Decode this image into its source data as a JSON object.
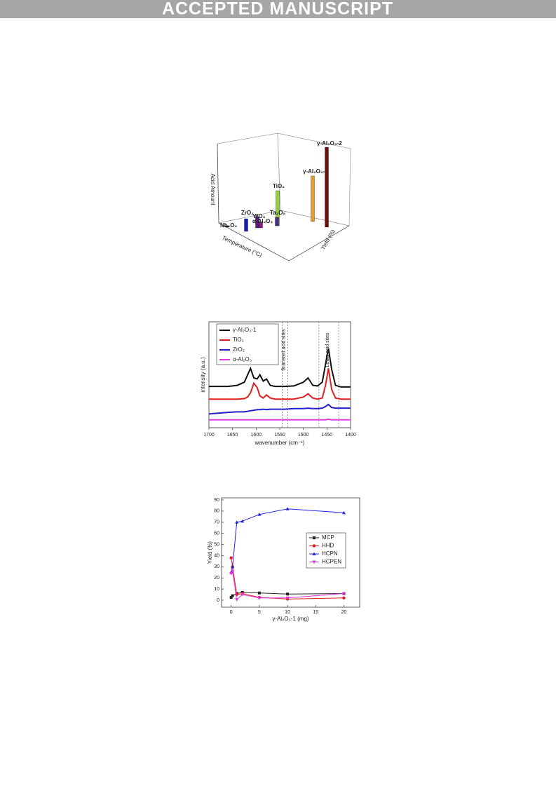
{
  "header": "ACCEPTED MANUSCRIPT",
  "chart_data": [
    {
      "type": "bar3d",
      "z_label": "Acid Amount",
      "x_label": "Temperature (°C)",
      "y_label": "Yield (%)",
      "categories": [
        "Nb₂O₅",
        "ZrO₂",
        "WO₃",
        "α-Al₂O₃",
        "TiO₂",
        "Ta₂O₅",
        "γ-Al₂O₃-1",
        "γ-Al₂O₃-2"
      ],
      "values": [
        2,
        18,
        16,
        8,
        50,
        12,
        65,
        114
      ],
      "colors": [
        "#222222",
        "#1a1ab0",
        "#5a1a7a",
        "#8a1a8a",
        "#8fd13a",
        "#4a2a8a",
        "#e0a030",
        "#6a1010"
      ]
    },
    {
      "type": "line",
      "x_label": "wavenumber (cm⁻¹)",
      "y_label": "intensity (a.u.)",
      "xlim": [
        1700,
        1400
      ],
      "ylim": [
        0,
        10
      ],
      "xticks": [
        1700,
        1650,
        1600,
        1550,
        1500,
        1450,
        1400
      ],
      "annotations": [
        {
          "text": "Brønsted acid sites",
          "lines": [
            1545,
            1533
          ]
        },
        {
          "text": "Lewis acid sites",
          "lines": [
            1467,
            1425
          ]
        }
      ],
      "x": [
        1700,
        1660,
        1640,
        1625,
        1618,
        1612,
        1605,
        1598,
        1592,
        1585,
        1578,
        1570,
        1560,
        1540,
        1520,
        1500,
        1490,
        1480,
        1470,
        1460,
        1453,
        1447,
        1440,
        1432,
        1420,
        1400
      ],
      "series": [
        {
          "name": "γ-Al₂O₃-1",
          "color": "#111111",
          "values": [
            3.9,
            3.9,
            4.0,
            4.3,
            5.0,
            5.6,
            4.7,
            4.6,
            5.0,
            4.4,
            4.6,
            4.0,
            3.9,
            3.9,
            3.95,
            4.3,
            4.7,
            4.0,
            3.95,
            4.3,
            6.0,
            7.5,
            5.5,
            4.0,
            3.85,
            3.85
          ]
        },
        {
          "name": "TiO₂",
          "color": "#e02020",
          "values": [
            2.7,
            2.7,
            2.7,
            2.75,
            2.9,
            3.3,
            4.2,
            3.8,
            3.0,
            2.8,
            3.1,
            2.8,
            2.7,
            2.7,
            2.7,
            2.9,
            3.2,
            2.8,
            2.7,
            2.8,
            4.0,
            5.6,
            3.6,
            2.8,
            2.7,
            2.7
          ]
        },
        {
          "name": "ZrO₂",
          "color": "#2020d0",
          "values": [
            1.3,
            1.45,
            1.5,
            1.5,
            1.55,
            1.6,
            1.65,
            1.7,
            1.7,
            1.75,
            1.7,
            1.75,
            1.75,
            1.75,
            1.8,
            1.8,
            1.85,
            1.8,
            1.8,
            1.85,
            2.0,
            2.2,
            1.9,
            1.85,
            1.85,
            1.85
          ]
        },
        {
          "name": "α-Al₂O₃",
          "color": "#e040e0",
          "values": [
            0.75,
            0.75,
            0.75,
            0.75,
            0.75,
            0.75,
            0.75,
            0.75,
            0.75,
            0.75,
            0.75,
            0.75,
            0.75,
            0.75,
            0.75,
            0.75,
            0.75,
            0.75,
            0.75,
            0.75,
            0.75,
            0.8,
            0.75,
            0.75,
            0.75,
            0.75
          ]
        }
      ]
    },
    {
      "type": "line",
      "x_label": "γ-Al₂O₃-1 (mg)",
      "y_label": "Yield (%)",
      "xlim": [
        -1.7,
        22.8
      ],
      "ylim": [
        -6.3,
        91.9
      ],
      "xticks": [
        0,
        5,
        10,
        15,
        20
      ],
      "yticks": [
        0,
        10,
        20,
        30,
        40,
        50,
        60,
        70,
        80,
        90
      ],
      "x": [
        0,
        0.25,
        1,
        2,
        5,
        10,
        20
      ],
      "series": [
        {
          "name": "MCP",
          "color": "#222222",
          "marker": "square",
          "values": [
            2.5,
            4,
            6,
            7,
            6.5,
            5.5,
            6
          ]
        },
        {
          "name": "HHD",
          "color": "#e02020",
          "marker": "circle",
          "values": [
            38,
            30,
            5,
            6,
            2.5,
            1,
            2
          ]
        },
        {
          "name": "HCPN",
          "color": "#2020e0",
          "marker": "triangle",
          "values": [
            25,
            30,
            70,
            71,
            77,
            82,
            78.5
          ]
        },
        {
          "name": "HCPEN",
          "color": "#e030e0",
          "marker": "triangle-down",
          "values": [
            24,
            26,
            0.5,
            5,
            2,
            2,
            6
          ]
        }
      ]
    }
  ]
}
